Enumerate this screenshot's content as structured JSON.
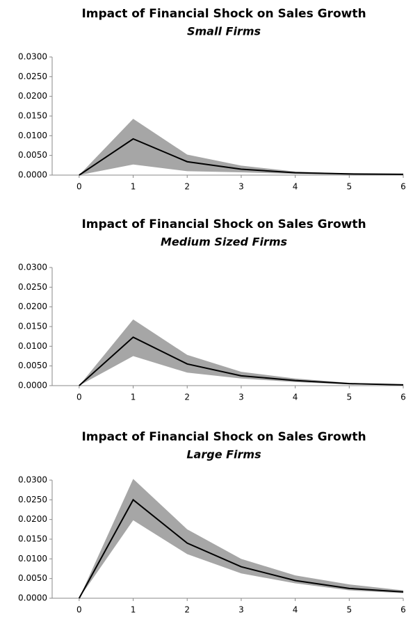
{
  "chart_data": [
    {
      "type": "line",
      "title": "Impact of Financial Shock on Sales Growth",
      "subtitle": "Small Firms",
      "x": [
        0,
        1,
        2,
        3,
        4,
        5,
        6
      ],
      "xlim": [
        -0.5,
        6
      ],
      "xticks": [
        0,
        1,
        2,
        3,
        4,
        5,
        6
      ],
      "values": [
        0,
        0.0092,
        0.0034,
        0.0015,
        0.0006,
        0.0003,
        0.0002
      ],
      "lower": [
        0,
        0.0027,
        0.001,
        0.0007,
        0.0003,
        0.0001,
        0.0001
      ],
      "upper": [
        0,
        0.0143,
        0.0052,
        0.0024,
        0.0009,
        0.0004,
        0.0003
      ],
      "color": "#000000",
      "band_color": "#a6a6a6",
      "ylim": [
        0,
        0.03
      ],
      "yticks": [
        {
          "value": 0,
          "label": "0.0000"
        },
        {
          "value": 0.005,
          "label": "0.0050"
        },
        {
          "value": 0.01,
          "label": "0.0100"
        },
        {
          "value": 0.015,
          "label": "0.0150"
        },
        {
          "value": 0.02,
          "label": "0.0200"
        },
        {
          "value": 0.025,
          "label": "0.0250"
        },
        {
          "value": 0.03,
          "label": "0.0300"
        }
      ]
    },
    {
      "type": "line",
      "title": "Impact of Financial Shock on Sales Growth",
      "subtitle": "Medium Sized Firms",
      "x": [
        0,
        1,
        2,
        3,
        4,
        5,
        6
      ],
      "xlim": [
        -0.5,
        6
      ],
      "xticks": [
        0,
        1,
        2,
        3,
        4,
        5,
        6
      ],
      "values": [
        0,
        0.0123,
        0.0055,
        0.0025,
        0.0013,
        0.0005,
        0.0002
      ],
      "lower": [
        0,
        0.0075,
        0.0033,
        0.0018,
        0.0009,
        0.0003,
        0.0001
      ],
      "upper": [
        0,
        0.0168,
        0.0078,
        0.0035,
        0.0018,
        0.0007,
        0.0003
      ],
      "color": "#000000",
      "band_color": "#a6a6a6",
      "ylim": [
        0,
        0.03
      ],
      "yticks": [
        {
          "value": 0,
          "label": "0.0000"
        },
        {
          "value": 0.005,
          "label": "0.0050"
        },
        {
          "value": 0.01,
          "label": "0.0100"
        },
        {
          "value": 0.015,
          "label": "0.0150"
        },
        {
          "value": 0.02,
          "label": "0.0200"
        },
        {
          "value": 0.025,
          "label": "0.0250"
        },
        {
          "value": 0.03,
          "label": "0.0300"
        }
      ]
    },
    {
      "type": "line",
      "title": "Impact of Financial Shock on Sales Growth",
      "subtitle": "Large Firms",
      "x": [
        0,
        1,
        2,
        3,
        4,
        5,
        6
      ],
      "xlim": [
        -0.5,
        6
      ],
      "xticks": [
        0,
        1,
        2,
        3,
        4,
        5,
        6
      ],
      "values": [
        0,
        0.025,
        0.014,
        0.008,
        0.0045,
        0.0025,
        0.0016
      ],
      "lower": [
        0,
        0.0198,
        0.0112,
        0.0063,
        0.0038,
        0.002,
        0.0013
      ],
      "upper": [
        0,
        0.0303,
        0.0175,
        0.01,
        0.0058,
        0.0035,
        0.002
      ],
      "color": "#000000",
      "band_color": "#a6a6a6",
      "ylim": [
        0,
        0.03
      ],
      "yticks": [
        {
          "value": 0,
          "label": "0.0000"
        },
        {
          "value": 0.005,
          "label": "0.0050"
        },
        {
          "value": 0.01,
          "label": "0.0100"
        },
        {
          "value": 0.015,
          "label": "0.0150"
        },
        {
          "value": 0.02,
          "label": "0.0200"
        },
        {
          "value": 0.025,
          "label": "0.0250"
        },
        {
          "value": 0.03,
          "label": "0.0300"
        }
      ]
    }
  ]
}
